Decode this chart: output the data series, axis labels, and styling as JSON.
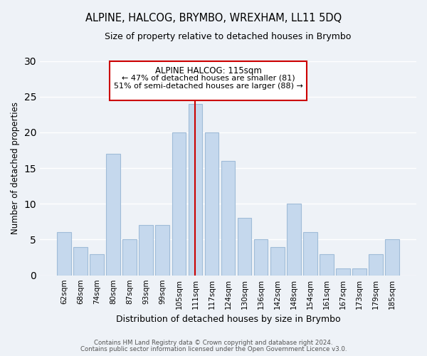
{
  "title": "ALPINE, HALCOG, BRYMBO, WREXHAM, LL11 5DQ",
  "subtitle": "Size of property relative to detached houses in Brymbo",
  "xlabel": "Distribution of detached houses by size in Brymbo",
  "ylabel": "Number of detached properties",
  "categories": [
    "62sqm",
    "68sqm",
    "74sqm",
    "80sqm",
    "87sqm",
    "93sqm",
    "99sqm",
    "105sqm",
    "111sqm",
    "117sqm",
    "124sqm",
    "130sqm",
    "136sqm",
    "142sqm",
    "148sqm",
    "154sqm",
    "161sqm",
    "167sqm",
    "173sqm",
    "179sqm",
    "185sqm"
  ],
  "values": [
    6,
    4,
    3,
    17,
    5,
    7,
    7,
    20,
    24,
    20,
    16,
    8,
    5,
    4,
    10,
    6,
    3,
    1,
    1,
    3,
    5
  ],
  "bar_color": "#c5d8ed",
  "bar_edge_color": "#a0bcd8",
  "vline_index": 8,
  "vline_color": "#cc0000",
  "annotation_title": "ALPINE HALCOG: 115sqm",
  "annotation_line1": "← 47% of detached houses are smaller (81)",
  "annotation_line2": "51% of semi-detached houses are larger (88) →",
  "annotation_box_color": "#ffffff",
  "annotation_border_color": "#cc0000",
  "ylim": [
    0,
    30
  ],
  "yticks": [
    0,
    5,
    10,
    15,
    20,
    25,
    30
  ],
  "footnote1": "Contains HM Land Registry data © Crown copyright and database right 2024.",
  "footnote2": "Contains public sector information licensed under the Open Government Licence v3.0.",
  "bg_color": "#eef2f7",
  "grid_color": "#ffffff"
}
